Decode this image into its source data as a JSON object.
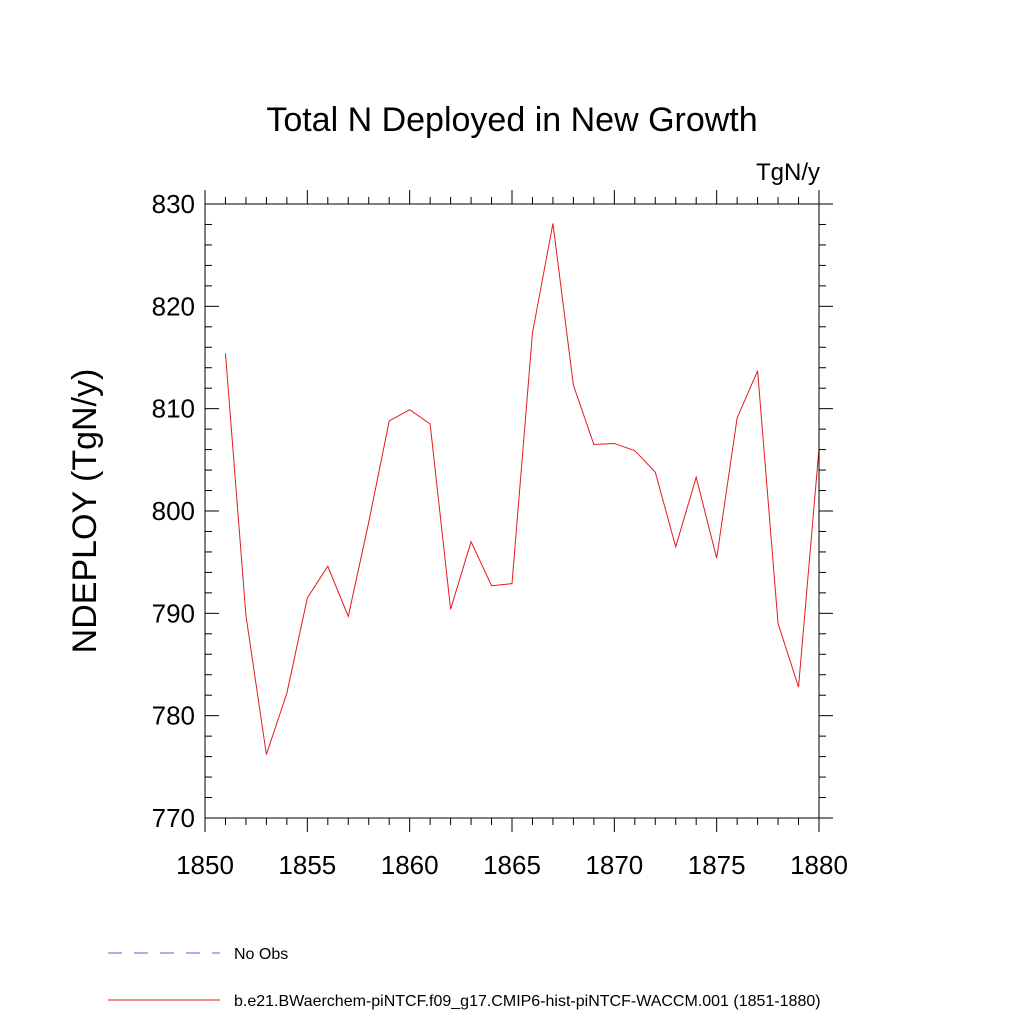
{
  "chart_data": {
    "type": "line",
    "title": "Total N Deployed in New Growth",
    "units_label": "TgN/y",
    "xlabel": "",
    "ylabel": "NDEPLOY  (TgN/y)",
    "xlim": [
      1850,
      1880
    ],
    "ylim": [
      770,
      830
    ],
    "x_ticks": [
      1850,
      1855,
      1860,
      1865,
      1870,
      1875,
      1880
    ],
    "y_ticks": [
      770,
      780,
      790,
      800,
      810,
      820,
      830
    ],
    "x_tick_labels": [
      "1850",
      "1855",
      "1860",
      "1865",
      "1870",
      "1875",
      "1880"
    ],
    "y_tick_labels": [
      "770",
      "780",
      "790",
      "800",
      "810",
      "820",
      "830"
    ],
    "grid": false,
    "legend_position": "bottom-left",
    "series": [
      {
        "name": "b.e21.BWaerchem-piNTCF.f09_g17.CMIP6-hist-piNTCF-WACCM.001 (1851-1880)",
        "color": "#e41a1c",
        "style": "solid",
        "x": [
          1851,
          1852,
          1853,
          1854,
          1855,
          1856,
          1857,
          1858,
          1859,
          1860,
          1861,
          1862,
          1863,
          1864,
          1865,
          1866,
          1867,
          1868,
          1869,
          1870,
          1871,
          1872,
          1873,
          1874,
          1875,
          1876,
          1877,
          1878,
          1879,
          1880
        ],
        "values": [
          815.4,
          789.8,
          776.2,
          782.2,
          791.5,
          794.6,
          789.7,
          798.9,
          808.8,
          809.9,
          808.5,
          790.4,
          797.0,
          792.7,
          792.9,
          817.4,
          828.1,
          812.3,
          806.5,
          806.6,
          805.9,
          803.8,
          796.5,
          803.3,
          795.4,
          809.1,
          813.7,
          789.0,
          782.8,
          806.1
        ]
      }
    ],
    "legend": [
      {
        "label": "No Obs",
        "color": "#6a5acd",
        "style": "dashed"
      },
      {
        "label": "b.e21.BWaerchem-piNTCF.f09_g17.CMIP6-hist-piNTCF-WACCM.001 (1851-1880)",
        "color": "#e41a1c",
        "style": "solid"
      }
    ]
  }
}
